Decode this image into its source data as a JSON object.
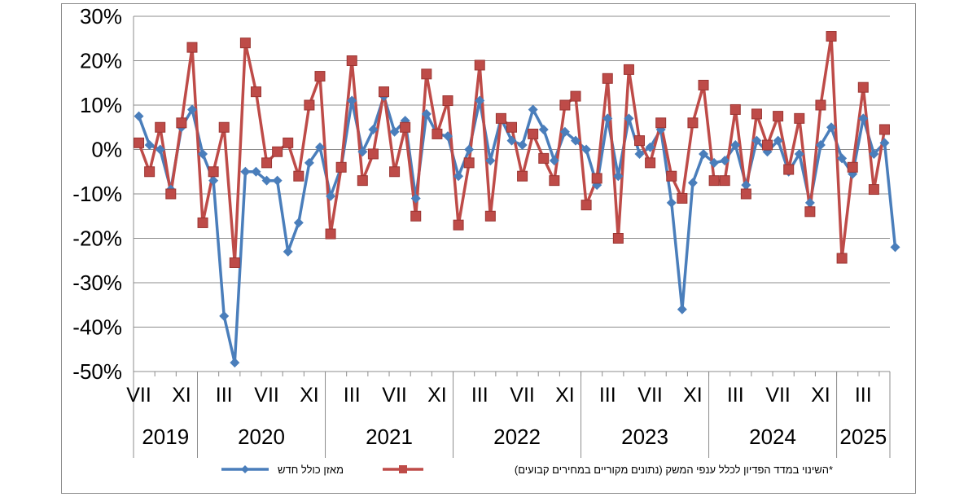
{
  "chart_data": {
    "type": "line",
    "y_unit": "%",
    "ylim": [
      -50,
      30
    ],
    "ytick_labels": [
      "30%",
      "20%",
      "10%",
      "0%",
      "-10%",
      "-20%",
      "-30%",
      "-40%",
      "-50%"
    ],
    "grid": true,
    "legend_position": "bottom",
    "month_labels": [
      "VII",
      "XI",
      "III",
      "VII",
      "XI",
      "III",
      "VII",
      "XI",
      "III",
      "VII",
      "XI",
      "III",
      "VII",
      "XI",
      "III",
      "VII",
      "XI",
      "III"
    ],
    "years": [
      "2019",
      "2020",
      "2021",
      "2022",
      "2023",
      "2024",
      "2025"
    ],
    "colors": {
      "blue": "#4a7ebb",
      "red": "#be4b48"
    },
    "series": [
      {
        "name": "מאזן כולל חדש",
        "color": "#4a7ebb",
        "marker": "diamond",
        "values": [
          7.5,
          1,
          0,
          -9,
          5,
          9,
          -1,
          -7,
          -37.5,
          -48,
          -5,
          -5,
          -7,
          -7,
          -23,
          -16.5,
          -3,
          0.5,
          -10.5,
          -4,
          11,
          -0.5,
          4.5,
          12,
          4,
          6.5,
          -11,
          8,
          3.5,
          3,
          -6,
          0,
          11,
          -2.5,
          7,
          2,
          1,
          9,
          4.5,
          -2.5,
          4,
          2,
          0,
          -8,
          7,
          -6,
          7,
          -1,
          0.5,
          4.5,
          -12,
          -36,
          -7.5,
          -1,
          -3,
          -2.5,
          1,
          -8,
          2,
          -0.5,
          2,
          -5,
          -1,
          -12,
          1,
          5,
          -2,
          -5.5,
          7,
          -1,
          1.5,
          -22
        ]
      },
      {
        "name": "השינוי במדד הפדיון לכלל ענפי המשק (נתונים מקוריים במחירים קבועים)*",
        "color": "#be4b48",
        "marker": "square",
        "values": [
          1.5,
          -5,
          5,
          -10,
          6,
          23,
          -16.5,
          -5,
          5,
          -25.5,
          24,
          13,
          -3,
          -0.5,
          1.5,
          -6,
          10,
          16.5,
          -19,
          -4,
          20,
          -7,
          -1,
          13,
          -5,
          5,
          -15,
          17,
          3.5,
          11,
          -17,
          -3,
          19,
          -15,
          7,
          5,
          -6,
          3.5,
          -2,
          -7,
          10,
          12,
          -12.5,
          -6.5,
          16,
          -20,
          18,
          2,
          -3,
          6,
          -6,
          -11,
          6,
          14.5,
          -7,
          -7,
          9,
          -10,
          8,
          1,
          7.5,
          -4.5,
          7,
          -14,
          10,
          25.5,
          -24.5,
          -4,
          14,
          -9,
          4.5
        ]
      }
    ]
  }
}
